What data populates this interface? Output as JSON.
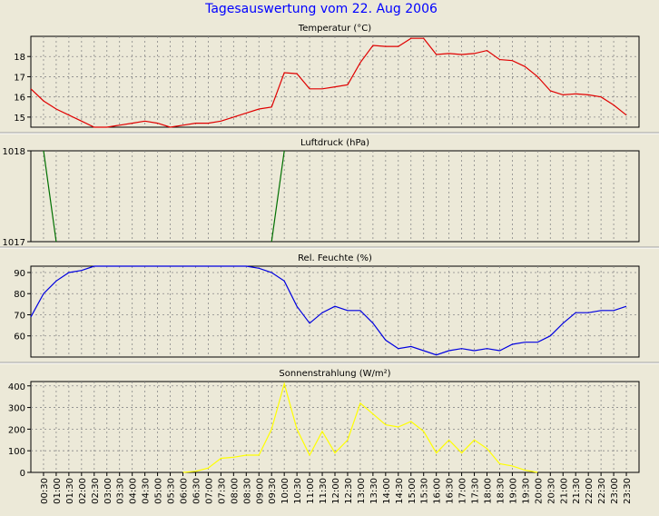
{
  "title": "Tagesauswertung vom 22. Aug 2006",
  "chart_data": [
    {
      "type": "line",
      "title": "Temperatur (°C)",
      "color": "#e00000",
      "ylim": [
        14.5,
        19.0
      ],
      "yticks": [
        15,
        16,
        17,
        18
      ],
      "x": [
        "00:00",
        "00:30",
        "01:00",
        "01:30",
        "02:00",
        "02:30",
        "03:00",
        "03:30",
        "04:00",
        "04:30",
        "05:00",
        "05:30",
        "06:00",
        "06:30",
        "07:00",
        "07:30",
        "08:00",
        "08:30",
        "09:00",
        "09:30",
        "10:00",
        "10:30",
        "11:00",
        "11:30",
        "12:00",
        "12:30",
        "13:00",
        "13:30",
        "14:00",
        "14:30",
        "15:00",
        "15:30",
        "16:00",
        "16:30",
        "17:00",
        "17:30",
        "18:00",
        "18:30",
        "19:00",
        "19:30",
        "20:00",
        "20:30",
        "21:00",
        "21:30",
        "22:00",
        "22:30",
        "23:00",
        "23:30"
      ],
      "values": [
        16.4,
        15.8,
        15.4,
        15.1,
        14.8,
        14.5,
        14.5,
        14.6,
        14.7,
        14.8,
        14.7,
        14.5,
        14.6,
        14.7,
        14.7,
        14.8,
        15.0,
        15.2,
        15.4,
        15.5,
        17.2,
        17.15,
        16.4,
        16.4,
        16.5,
        16.6,
        17.7,
        18.55,
        18.5,
        18.5,
        18.9,
        18.9,
        18.1,
        18.15,
        18.1,
        18.15,
        18.3,
        17.85,
        17.8,
        17.5,
        17.0,
        16.3,
        16.1,
        16.15,
        16.1,
        16.0,
        15.6,
        15.1
      ]
    },
    {
      "type": "line",
      "title": "Luftdruck (hPa)",
      "color": "#007000",
      "ylim": [
        1017,
        1018
      ],
      "yticks": [
        1017,
        1018
      ],
      "segments": [
        {
          "x": [
            "00:30",
            "01:00"
          ],
          "values": [
            1018,
            1017
          ]
        },
        {
          "x": [
            "09:30",
            "10:00"
          ],
          "values": [
            1017,
            1018
          ]
        }
      ]
    },
    {
      "type": "line",
      "title": "Rel. Feuchte (%)",
      "color": "#0000e0",
      "ylim": [
        50,
        93
      ],
      "yticks": [
        60,
        70,
        80,
        90
      ],
      "x": [
        "00:00",
        "00:30",
        "01:00",
        "01:30",
        "02:00",
        "02:30",
        "03:00",
        "03:30",
        "04:00",
        "04:30",
        "05:00",
        "05:30",
        "06:00",
        "06:30",
        "07:00",
        "07:30",
        "08:00",
        "08:30",
        "09:00",
        "09:30",
        "10:00",
        "10:30",
        "11:00",
        "11:30",
        "12:00",
        "12:30",
        "13:00",
        "13:30",
        "14:00",
        "14:30",
        "15:00",
        "15:30",
        "16:00",
        "16:30",
        "17:00",
        "17:30",
        "18:00",
        "18:30",
        "19:00",
        "19:30",
        "20:00",
        "20:30",
        "21:00",
        "21:30",
        "22:00",
        "22:30",
        "23:00",
        "23:30"
      ],
      "values": [
        69,
        80,
        86,
        90,
        91,
        93,
        93,
        93,
        93,
        93,
        93,
        93,
        93,
        93,
        93,
        93,
        93,
        93,
        92,
        90,
        86,
        74,
        66,
        71,
        74,
        72,
        72,
        66,
        58,
        54,
        55,
        53,
        51,
        53,
        54,
        53,
        54,
        53,
        56,
        57,
        57,
        60,
        66,
        71,
        71,
        72,
        72,
        74
      ]
    },
    {
      "type": "line",
      "title": "Sonnenstrahlung (W/m²)",
      "color": "#ffff00",
      "ylim": [
        0,
        420
      ],
      "yticks": [
        0,
        100,
        200,
        300,
        400
      ],
      "x": [
        "06:00",
        "06:30",
        "07:00",
        "07:30",
        "08:00",
        "08:30",
        "09:00",
        "09:30",
        "10:00",
        "10:30",
        "11:00",
        "11:30",
        "12:00",
        "12:30",
        "13:00",
        "13:30",
        "14:00",
        "14:30",
        "15:00",
        "15:30",
        "16:00",
        "16:30",
        "17:00",
        "17:30",
        "18:00",
        "18:30",
        "19:00",
        "19:30",
        "20:00"
      ],
      "values": [
        0,
        5,
        20,
        65,
        70,
        80,
        80,
        200,
        410,
        200,
        80,
        190,
        90,
        150,
        320,
        270,
        220,
        210,
        235,
        190,
        90,
        150,
        90,
        150,
        110,
        40,
        30,
        10,
        0
      ]
    }
  ],
  "x_tick_labels": [
    "00:30",
    "01:00",
    "01:30",
    "02:00",
    "02:30",
    "03:00",
    "03:30",
    "04:00",
    "04:30",
    "05:00",
    "05:30",
    "06:00",
    "06:30",
    "07:00",
    "07:30",
    "08:00",
    "08:30",
    "09:00",
    "09:30",
    "10:00",
    "10:30",
    "11:00",
    "11:30",
    "12:00",
    "12:30",
    "13:00",
    "13:30",
    "14:00",
    "14:30",
    "15:00",
    "15:30",
    "16:00",
    "16:30",
    "17:00",
    "17:30",
    "18:00",
    "18:30",
    "19:00",
    "19:30",
    "20:00",
    "20:30",
    "21:00",
    "21:30",
    "22:00",
    "22:30",
    "23:00",
    "23:30"
  ],
  "grid": true
}
